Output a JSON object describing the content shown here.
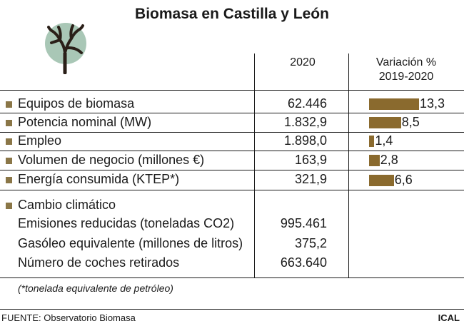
{
  "title": "Biomasa en Castilla y León",
  "headers": {
    "year": "2020",
    "variation": "Variación %",
    "variation_period": "2019-2020"
  },
  "rows": [
    {
      "label": "Equipos de biomasa",
      "value": "62.446",
      "variation": "13,3"
    },
    {
      "label": "Potencia nominal (MW)",
      "value": "1.832,9",
      "variation": "8,5"
    },
    {
      "label": "Empleo",
      "value": "1.898,0",
      "variation": "1,4"
    },
    {
      "label": "Volumen de negocio (millones €)",
      "value": "163,9",
      "variation": "2,8"
    },
    {
      "label": "Energía consumida (KTEP*)",
      "value": "321,9",
      "variation": "6,6"
    }
  ],
  "climate": {
    "label": "Cambio climático",
    "items": [
      {
        "label": "Emisiones reducidas (toneladas CO2)",
        "value": "995.461"
      },
      {
        "label": "Gasóleo equivalente (millones de litros)",
        "value": "375,2"
      },
      {
        "label": "Número de coches retirados",
        "value": "663.640"
      }
    ]
  },
  "footnote": "(*tonelada equivalente de petróleo)",
  "source": "FUENTE: Observatorio Biomasa",
  "brand": "ICAL",
  "colors": {
    "bar": "#8a6a2e",
    "bullet": "#8a7647",
    "icon_bg": "#a9c7b6"
  },
  "chart_data": {
    "type": "bar",
    "title": "Variación % 2019-2020",
    "categories": [
      "Equipos de biomasa",
      "Potencia nominal (MW)",
      "Empleo",
      "Volumen de negocio (millones €)",
      "Energía consumida (KTEP*)"
    ],
    "values": [
      13.3,
      8.5,
      1.4,
      2.8,
      6.6
    ],
    "xlabel": "",
    "ylabel": "",
    "xlim": [
      0,
      14
    ]
  }
}
